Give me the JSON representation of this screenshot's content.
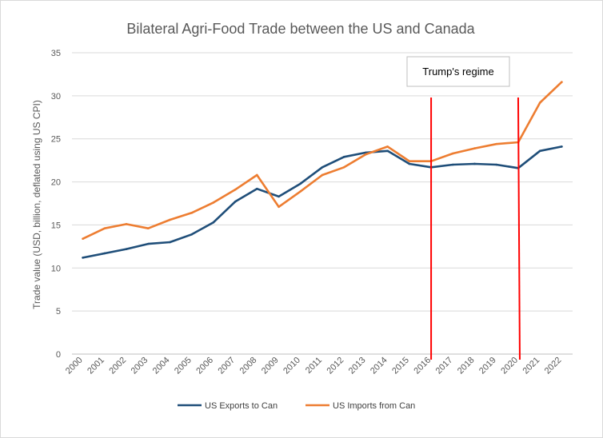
{
  "chart_data": {
    "type": "line",
    "title": "Bilateral Agri-Food Trade between the US and Canada",
    "xlabel": "",
    "ylabel": "Trade value (USD, billion, deflated using US CPI)",
    "ylim": [
      0,
      35
    ],
    "yticks": [
      0,
      5,
      10,
      15,
      20,
      25,
      30,
      35
    ],
    "grid": true,
    "legend_position": "bottom",
    "categories": [
      "2000",
      "2001",
      "2002",
      "2003",
      "2004",
      "2005",
      "2006",
      "2007",
      "2008",
      "2009",
      "2010",
      "2011",
      "2012",
      "2013",
      "2014",
      "2015",
      "2016",
      "2017",
      "2018",
      "2019",
      "2020",
      "2021",
      "2022"
    ],
    "series": [
      {
        "name": "US Exports to Can",
        "color": "#1f4e79",
        "values": [
          11.2,
          11.7,
          12.2,
          12.8,
          13.0,
          13.9,
          15.3,
          17.7,
          19.2,
          18.3,
          19.8,
          21.7,
          22.9,
          23.4,
          23.6,
          22.1,
          21.7,
          22.0,
          22.1,
          22.0,
          21.6,
          23.6,
          24.1
        ]
      },
      {
        "name": "US Imports from Can",
        "color": "#ed7d31",
        "values": [
          13.4,
          14.6,
          15.1,
          14.6,
          15.6,
          16.4,
          17.6,
          19.1,
          20.8,
          17.1,
          18.9,
          20.8,
          21.7,
          23.2,
          24.1,
          22.4,
          22.4,
          23.3,
          23.9,
          24.4,
          24.6,
          29.2,
          31.6
        ]
      }
    ],
    "annotation": {
      "text": "Trump's regime",
      "start_year": "2016",
      "end_year": "2020",
      "line_color": "#ff0000"
    }
  }
}
